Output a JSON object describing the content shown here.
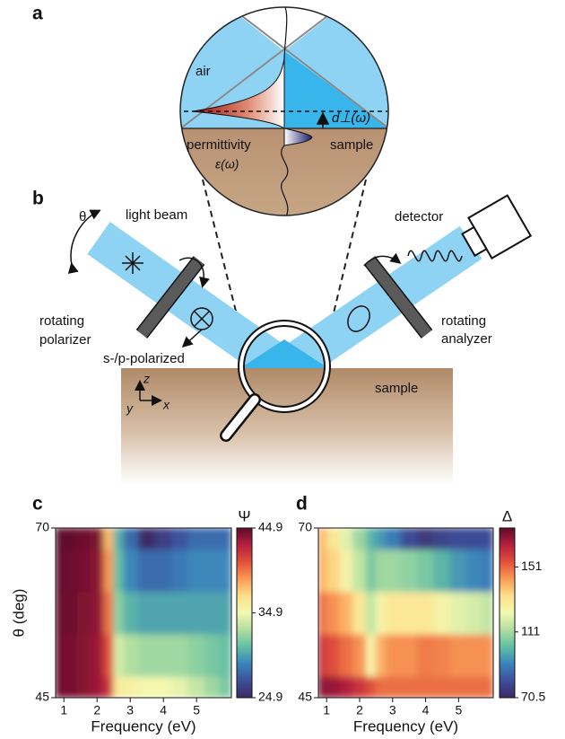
{
  "panel_a": {
    "label": "a",
    "air": "air",
    "permittivity": "permittivity",
    "epsilon": "ε(ω)",
    "sample": "sample",
    "distance": "d⊥(ω)"
  },
  "panel_b": {
    "label": "b",
    "theta": "θ",
    "light_beam": "light beam",
    "detector": "detector",
    "polarizer": [
      "rotating",
      "polarizer"
    ],
    "polarization": "s-/p-polarized",
    "analyzer": [
      "rotating",
      "analyzer"
    ],
    "sample": "sample",
    "axes": {
      "x": "x",
      "y": "y",
      "z": "z"
    }
  },
  "chart_data": [
    {
      "type": "heatmap",
      "panel_label": "c",
      "xlabel": "Frequency (eV)",
      "ylabel": "θ (deg)",
      "x": [
        0.8,
        1.2,
        1.6,
        2.0,
        2.4,
        2.6,
        3.0,
        3.5,
        4.0,
        4.5,
        5.0,
        5.5,
        5.9
      ],
      "y": [
        45,
        51.25,
        57.5,
        63.75,
        70
      ],
      "values": [
        [
          44.5,
          44.3,
          44,
          43.5,
          42,
          36,
          35.5,
          35,
          35,
          34.5,
          33.5,
          32.5,
          31.5
        ],
        [
          44.5,
          44.3,
          44,
          43.5,
          41,
          34,
          33,
          32.5,
          32.5,
          32.5,
          32,
          31.5,
          31
        ],
        [
          44.7,
          44.5,
          44.2,
          43.8,
          40,
          32,
          30.5,
          30,
          30,
          30,
          30,
          30,
          30
        ],
        [
          44.8,
          44.6,
          44.3,
          44,
          39,
          31,
          29,
          28,
          28,
          28.5,
          29,
          29,
          29
        ],
        [
          44.9,
          44.8,
          44.5,
          44.2,
          38,
          30.5,
          28,
          25,
          26,
          27,
          28,
          28,
          28
        ]
      ],
      "xlim": [
        0.75,
        6.05
      ],
      "ylim": [
        45,
        70
      ],
      "xticks": [
        1,
        2,
        3,
        4,
        5
      ],
      "yticks": [
        45,
        70
      ],
      "colorbar_label": "Ψ",
      "clim": [
        24.9,
        44.9
      ],
      "cticks": [
        24.9,
        34.9,
        44.9
      ],
      "colormap": [
        "#3b2a64",
        "#3d4f9b",
        "#3a84bb",
        "#62bfa4",
        "#b0dea0",
        "#f3f8b0",
        "#fee08b",
        "#f99a55",
        "#e2513b",
        "#b51f3e",
        "#5e0b2a"
      ]
    },
    {
      "type": "heatmap",
      "panel_label": "d",
      "xlabel": "Frequency (eV)",
      "x": [
        0.8,
        1.2,
        1.6,
        2.0,
        2.4,
        2.6,
        3.0,
        3.5,
        4.0,
        4.5,
        5.0,
        5.5,
        5.9
      ],
      "y": [
        45,
        51.25,
        57.5,
        63.75,
        70
      ],
      "values": [
        [
          170,
          168,
          165,
          160,
          155,
          150,
          150,
          150,
          150,
          150,
          150,
          150,
          150
        ],
        [
          160,
          155,
          150,
          145,
          125,
          140,
          145,
          145,
          148,
          147,
          145,
          145,
          145
        ],
        [
          150,
          145,
          140,
          130,
          115,
          125,
          130,
          130,
          130,
          125,
          120,
          118,
          115
        ],
        [
          140,
          135,
          125,
          115,
          105,
          110,
          110,
          108,
          105,
          100,
          95,
          92,
          90
        ],
        [
          140,
          130,
          120,
          110,
          100,
          95,
          90,
          80,
          75,
          78,
          80,
          80,
          80
        ]
      ],
      "xlim": [
        0.75,
        6.05
      ],
      "ylim": [
        45,
        70
      ],
      "xticks": [
        1,
        2,
        3,
        4,
        5
      ],
      "yticks": [
        45,
        70
      ],
      "colorbar_label": "Δ",
      "clim": [
        70.5,
        175
      ],
      "cticks": [
        70.5,
        111,
        151
      ],
      "colormap": [
        "#3b2a64",
        "#3d4f9b",
        "#3a84bb",
        "#62bfa4",
        "#b0dea0",
        "#f3f8b0",
        "#fee08b",
        "#f99a55",
        "#e2513b",
        "#b51f3e",
        "#5e0b2a"
      ]
    }
  ]
}
